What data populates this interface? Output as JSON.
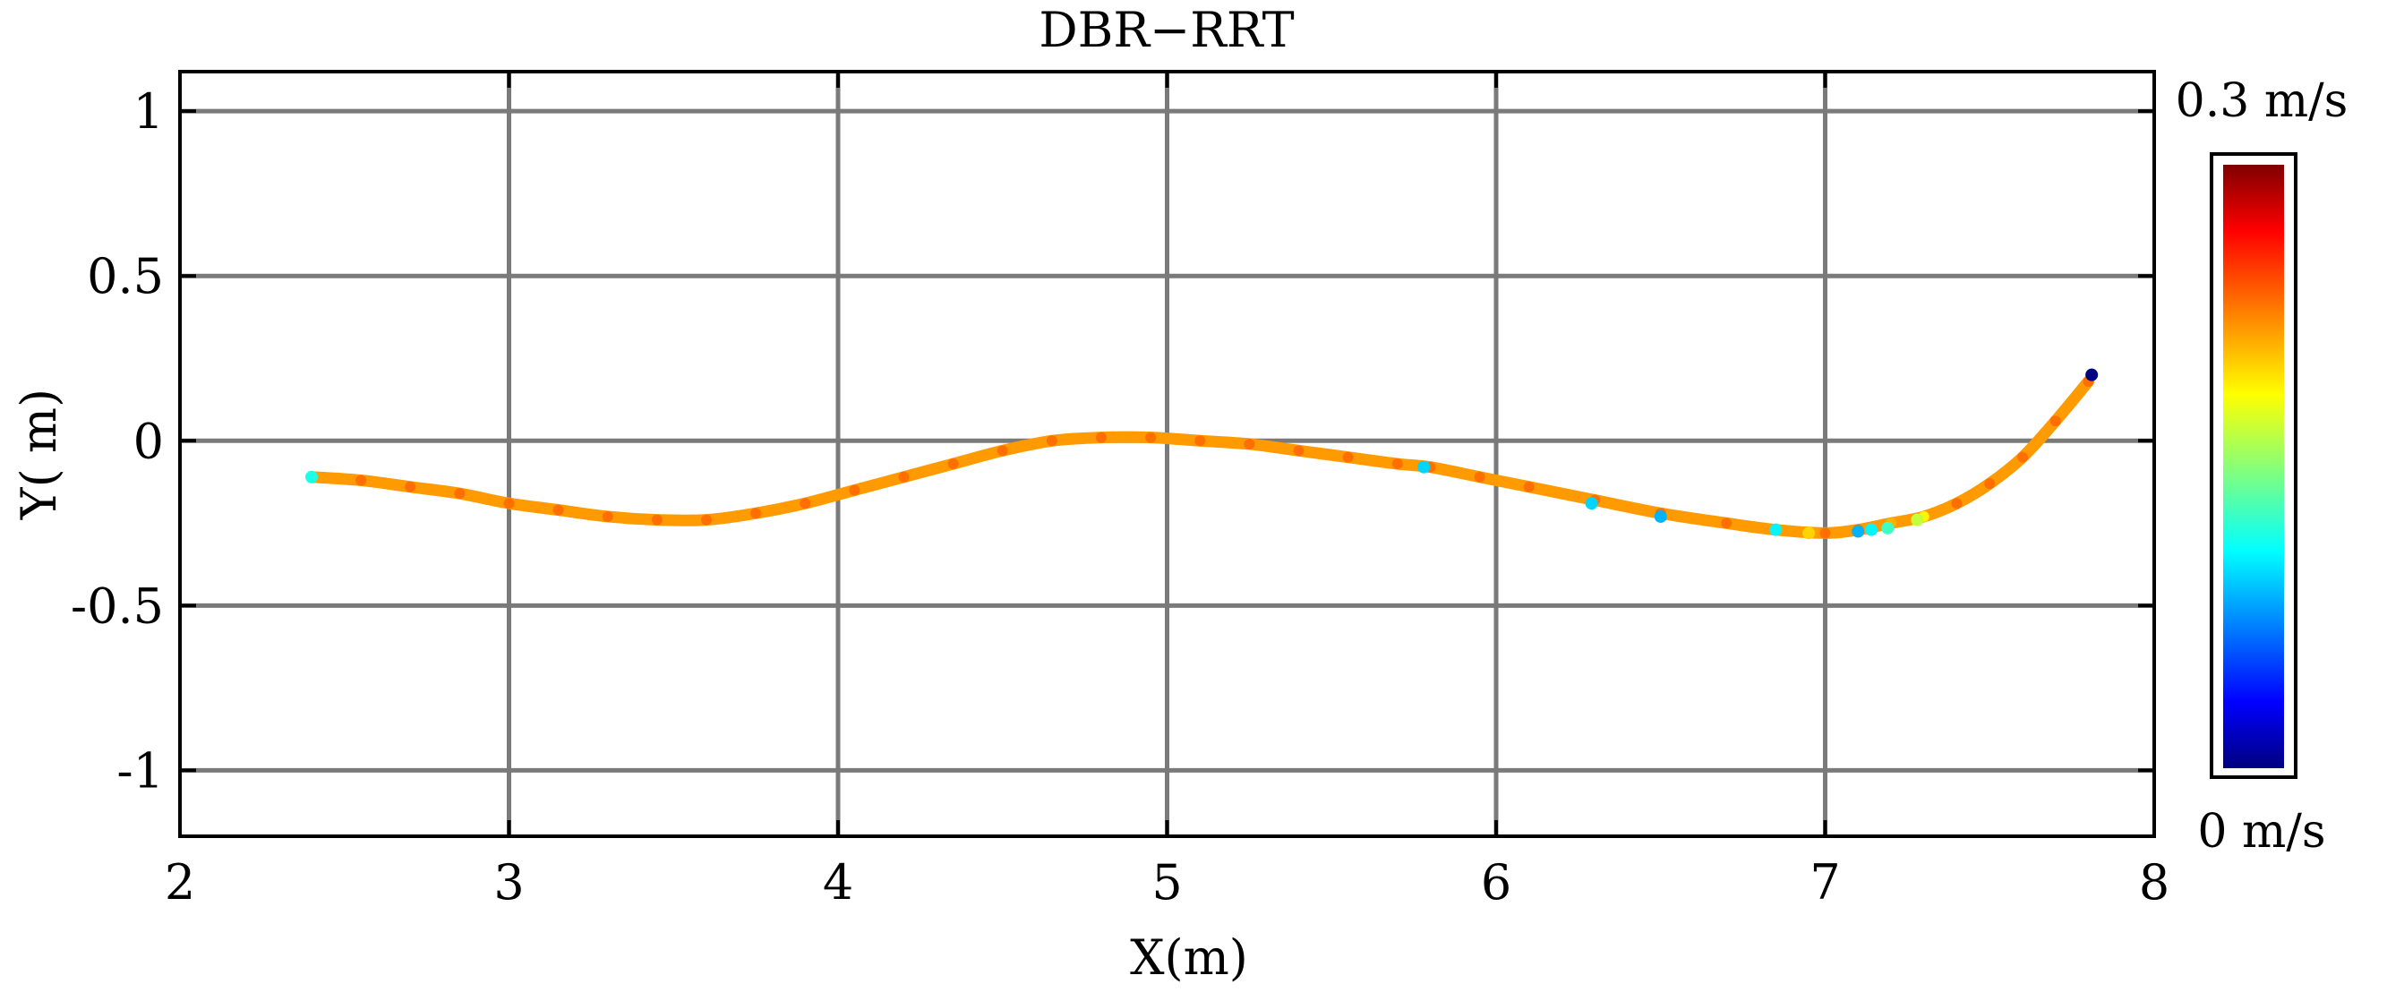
{
  "chart_data": {
    "type": "scatter",
    "title": "DBR−RRT",
    "xlabel": "X(m)",
    "ylabel": "Y( m)",
    "xlim": [
      2,
      8
    ],
    "ylim": [
      -1.2,
      1.12
    ],
    "xticks": [
      2,
      3,
      4,
      5,
      6,
      7,
      8
    ],
    "xtick_labels": [
      "2",
      "3",
      "4",
      "5",
      "6",
      "7",
      "8"
    ],
    "yticks": [
      1,
      0.5,
      0,
      -0.5,
      -1
    ],
    "ytick_labels": [
      "1",
      "0.5",
      "0",
      "-0.5",
      "-1"
    ],
    "grid": true,
    "colormap": "jet",
    "colorbar": {
      "min": 0,
      "max": 0.3,
      "max_label": "0.3 m/s",
      "min_label": "0 m/s",
      "placement": "right"
    },
    "path_color": "#ff9a00",
    "series": [
      {
        "x": [
          2.4,
          2.55,
          2.7,
          2.85,
          3.0,
          3.15,
          3.3,
          3.45,
          3.6,
          3.75,
          3.9,
          4.05,
          4.2,
          4.35,
          4.5,
          4.65,
          4.8,
          4.95,
          5.1,
          5.25,
          5.4,
          5.55,
          5.7,
          5.8,
          5.95,
          6.1,
          6.3,
          6.5,
          6.7,
          6.85,
          7.0,
          7.1,
          7.2,
          7.3,
          7.4,
          7.5,
          7.6,
          7.7,
          7.8
        ],
        "y": [
          -0.11,
          -0.12,
          -0.14,
          -0.16,
          -0.19,
          -0.21,
          -0.23,
          -0.24,
          -0.24,
          -0.22,
          -0.19,
          -0.15,
          -0.11,
          -0.07,
          -0.03,
          0.0,
          0.01,
          0.01,
          0.0,
          -0.01,
          -0.03,
          -0.05,
          -0.07,
          -0.08,
          -0.11,
          -0.14,
          -0.18,
          -0.22,
          -0.25,
          -0.27,
          -0.28,
          -0.27,
          -0.25,
          -0.23,
          -0.19,
          -0.13,
          -0.05,
          0.06,
          0.18
        ],
        "speed": [
          0.23,
          0.23,
          0.23,
          0.23,
          0.23,
          0.23,
          0.23,
          0.23,
          0.23,
          0.23,
          0.23,
          0.23,
          0.23,
          0.23,
          0.23,
          0.23,
          0.23,
          0.23,
          0.23,
          0.23,
          0.23,
          0.23,
          0.23,
          0.23,
          0.23,
          0.23,
          0.23,
          0.23,
          0.23,
          0.23,
          0.23,
          0.23,
          0.21,
          0.19,
          0.23,
          0.23,
          0.23,
          0.23,
          0.23
        ]
      }
    ],
    "markers": [
      {
        "x": 2.4,
        "y": -0.11,
        "speed": 0.12
      },
      {
        "x": 5.78,
        "y": -0.08,
        "speed": 0.1
      },
      {
        "x": 6.29,
        "y": -0.19,
        "speed": 0.1
      },
      {
        "x": 6.5,
        "y": -0.23,
        "speed": 0.09
      },
      {
        "x": 6.85,
        "y": -0.27,
        "speed": 0.11
      },
      {
        "x": 6.95,
        "y": -0.28,
        "speed": 0.2
      },
      {
        "x": 7.1,
        "y": -0.275,
        "speed": 0.09
      },
      {
        "x": 7.14,
        "y": -0.27,
        "speed": 0.11
      },
      {
        "x": 7.19,
        "y": -0.265,
        "speed": 0.13
      },
      {
        "x": 7.28,
        "y": -0.24,
        "speed": 0.17
      },
      {
        "x": 7.81,
        "y": 0.2,
        "speed": 0.0
      }
    ]
  }
}
